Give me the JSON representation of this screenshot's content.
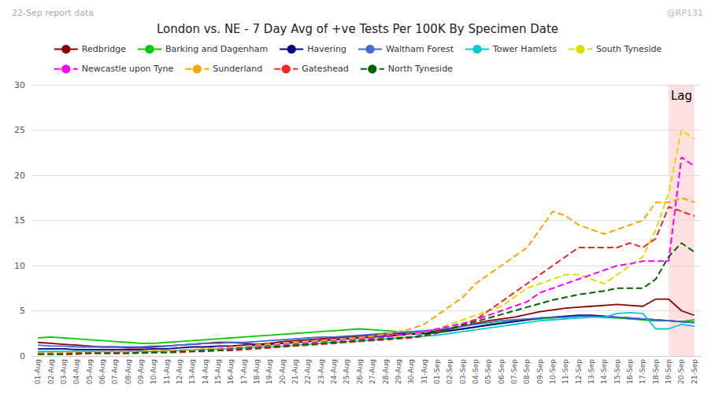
{
  "chart_data": {
    "type": "line",
    "title": "London vs. NE - 7 Day Avg of +ve Tests Per 100K By Specimen Date",
    "subtitle": "22-Sep report data",
    "annotations": [
      {
        "text": "@RP131"
      },
      {
        "text": "Lag",
        "x": [
          "19-Sep",
          "21-Sep"
        ]
      }
    ],
    "categories": [
      "01-Aug",
      "02-Aug",
      "03-Aug",
      "04-Aug",
      "05-Aug",
      "06-Aug",
      "07-Aug",
      "08-Aug",
      "09-Aug",
      "10-Aug",
      "11-Aug",
      "12-Aug",
      "13-Aug",
      "14-Aug",
      "15-Aug",
      "16-Aug",
      "17-Aug",
      "18-Aug",
      "19-Aug",
      "20-Aug",
      "21-Aug",
      "22-Aug",
      "23-Aug",
      "24-Aug",
      "25-Aug",
      "26-Aug",
      "27-Aug",
      "28-Aug",
      "29-Aug",
      "30-Aug",
      "31-Aug",
      "01-Sep",
      "02-Sep",
      "03-Sep",
      "04-Sep",
      "05-Sep",
      "06-Sep",
      "07-Sep",
      "08-Sep",
      "09-Sep",
      "10-Sep",
      "11-Sep",
      "12-Sep",
      "13-Sep",
      "14-Sep",
      "15-Sep",
      "16-Sep",
      "17-Sep",
      "18-Sep",
      "19-Sep",
      "20-Sep",
      "21-Sep"
    ],
    "series": [
      {
        "name": "Redbridge",
        "color": "#8B0000",
        "line_style": "solid",
        "values": [
          1.5,
          1.4,
          1.3,
          1.2,
          1.1,
          1.0,
          1.0,
          0.9,
          0.9,
          1.0,
          1.1,
          1.2,
          1.3,
          1.4,
          1.5,
          1.5,
          1.4,
          1.3,
          1.4,
          1.6,
          1.7,
          1.8,
          1.9,
          2.0,
          2.1,
          2.2,
          2.3,
          2.4,
          2.5,
          2.5,
          2.6,
          2.8,
          3.0,
          3.3,
          3.6,
          3.9,
          4.1,
          4.3,
          4.6,
          4.9,
          5.1,
          5.3,
          5.4,
          5.5,
          5.6,
          5.7,
          5.6,
          5.5,
          6.3,
          6.3,
          5.0,
          4.5
        ]
      },
      {
        "name": "Barking and Dagenham",
        "color": "#00CC00",
        "line_style": "solid",
        "values": [
          2.0,
          2.1,
          2.0,
          1.9,
          1.8,
          1.7,
          1.6,
          1.5,
          1.4,
          1.4,
          1.5,
          1.6,
          1.7,
          1.8,
          1.9,
          2.0,
          2.1,
          2.2,
          2.3,
          2.4,
          2.5,
          2.6,
          2.7,
          2.8,
          2.9,
          3.0,
          2.9,
          2.8,
          2.7,
          2.6,
          2.5,
          2.6,
          2.8,
          3.0,
          3.2,
          3.5,
          3.7,
          3.9,
          4.0,
          4.1,
          4.2,
          4.3,
          4.4,
          4.4,
          4.3,
          4.2,
          4.1,
          4.0,
          3.9,
          3.9,
          3.8,
          4.0
        ]
      },
      {
        "name": "Havering",
        "color": "#00008B",
        "line_style": "solid",
        "values": [
          0.8,
          0.8,
          0.8,
          0.7,
          0.7,
          0.7,
          0.7,
          0.7,
          0.7,
          0.8,
          0.8,
          0.9,
          1.0,
          1.0,
          1.1,
          1.1,
          1.2,
          1.2,
          1.3,
          1.4,
          1.5,
          1.6,
          1.7,
          1.8,
          1.9,
          2.0,
          2.1,
          2.2,
          2.3,
          2.4,
          2.5,
          2.6,
          2.8,
          3.0,
          3.2,
          3.4,
          3.6,
          3.8,
          4.0,
          4.2,
          4.3,
          4.4,
          4.5,
          4.5,
          4.4,
          4.3,
          4.2,
          4.1,
          4.0,
          3.9,
          3.8,
          3.7
        ]
      },
      {
        "name": "Waltham Forest",
        "color": "#4169E1",
        "line_style": "solid",
        "values": [
          1.2,
          1.1,
          1.1,
          1.0,
          1.0,
          1.0,
          1.0,
          1.0,
          1.0,
          1.1,
          1.1,
          1.2,
          1.3,
          1.4,
          1.4,
          1.5,
          1.5,
          1.6,
          1.7,
          1.8,
          1.9,
          2.0,
          2.1,
          2.1,
          2.2,
          2.3,
          2.4,
          2.5,
          2.6,
          2.7,
          2.8,
          2.9,
          3.1,
          3.3,
          3.5,
          3.7,
          3.9,
          4.0,
          4.1,
          4.2,
          4.3,
          4.3,
          4.4,
          4.4,
          4.3,
          4.3,
          4.2,
          4.1,
          4.0,
          3.9,
          3.8,
          3.7
        ]
      },
      {
        "name": "Tower Hamlets",
        "color": "#00CCCC",
        "line_style": "solid",
        "values": [
          0.5,
          0.5,
          0.5,
          0.5,
          0.5,
          0.5,
          0.5,
          0.5,
          0.5,
          0.5,
          0.6,
          0.6,
          0.7,
          0.7,
          0.8,
          0.8,
          0.9,
          1.0,
          1.0,
          1.1,
          1.2,
          1.3,
          1.4,
          1.5,
          1.6,
          1.7,
          1.8,
          1.9,
          2.0,
          2.1,
          2.2,
          2.3,
          2.5,
          2.7,
          2.9,
          3.1,
          3.3,
          3.5,
          3.7,
          3.9,
          4.0,
          4.1,
          4.2,
          4.3,
          4.3,
          4.7,
          4.8,
          4.7,
          3.0,
          3.0,
          3.5,
          3.3
        ]
      },
      {
        "name": "South Tyneside",
        "color": "#DDDD00",
        "line_style": "dashed",
        "values": [
          0.3,
          0.3,
          0.3,
          0.3,
          0.3,
          0.3,
          0.4,
          0.4,
          0.4,
          0.4,
          0.5,
          0.5,
          0.6,
          0.6,
          0.7,
          0.8,
          0.9,
          1.0,
          1.1,
          1.2,
          1.3,
          1.4,
          1.5,
          1.6,
          1.7,
          1.8,
          1.9,
          2.0,
          2.2,
          2.4,
          2.6,
          3.0,
          3.5,
          4.0,
          4.5,
          5.0,
          5.5,
          6.5,
          7.5,
          8.0,
          8.5,
          9.0,
          9.0,
          8.5,
          8.0,
          9.0,
          10.0,
          11.0,
          14.0,
          18.0,
          25.0,
          24.0
        ]
      },
      {
        "name": "Newcastle upon Tyne",
        "color": "#FF00FF",
        "line_style": "dashed",
        "values": [
          0.3,
          0.3,
          0.3,
          0.3,
          0.4,
          0.4,
          0.4,
          0.5,
          0.5,
          0.5,
          0.6,
          0.6,
          0.7,
          0.7,
          0.8,
          0.9,
          1.0,
          1.1,
          1.2,
          1.3,
          1.4,
          1.5,
          1.6,
          1.7,
          1.8,
          1.9,
          2.0,
          2.1,
          2.3,
          2.5,
          2.7,
          3.0,
          3.3,
          3.6,
          4.0,
          4.5,
          5.0,
          5.5,
          6.0,
          7.0,
          7.5,
          8.0,
          8.5,
          9.0,
          9.5,
          10.0,
          10.2,
          10.5,
          10.5,
          10.5,
          22.0,
          21.0
        ]
      },
      {
        "name": "Sunderland",
        "color": "#FFA500",
        "line_style": "dashed",
        "values": [
          0.3,
          0.3,
          0.4,
          0.4,
          0.4,
          0.5,
          0.5,
          0.5,
          0.5,
          0.6,
          0.6,
          0.7,
          0.7,
          0.8,
          0.9,
          1.0,
          1.1,
          1.2,
          1.3,
          1.4,
          1.5,
          1.6,
          1.7,
          1.8,
          1.9,
          2.0,
          2.2,
          2.4,
          2.7,
          3.0,
          3.5,
          4.5,
          5.5,
          6.5,
          8.0,
          9.0,
          10.0,
          11.0,
          12.0,
          14.0,
          16.0,
          15.5,
          14.5,
          14.0,
          13.5,
          14.0,
          14.5,
          15.0,
          17.0,
          17.0,
          17.5,
          17.0
        ]
      },
      {
        "name": "Gateshead",
        "color": "#FF2222",
        "line_style": "dashed",
        "values": [
          0.2,
          0.2,
          0.2,
          0.2,
          0.3,
          0.3,
          0.3,
          0.3,
          0.3,
          0.4,
          0.4,
          0.4,
          0.5,
          0.5,
          0.6,
          0.6,
          0.7,
          0.8,
          0.9,
          1.0,
          1.1,
          1.2,
          1.3,
          1.4,
          1.5,
          1.6,
          1.7,
          1.8,
          1.9,
          2.0,
          2.2,
          2.5,
          3.0,
          3.5,
          4.0,
          5.0,
          6.0,
          7.0,
          8.0,
          9.0,
          10.0,
          11.0,
          12.0,
          12.0,
          12.0,
          12.0,
          12.5,
          12.0,
          13.0,
          16.5,
          16.0,
          15.5
        ]
      },
      {
        "name": "North Tyneside",
        "color": "#006400",
        "line_style": "dashed",
        "values": [
          0.2,
          0.2,
          0.2,
          0.3,
          0.3,
          0.3,
          0.3,
          0.3,
          0.4,
          0.4,
          0.4,
          0.5,
          0.5,
          0.6,
          0.6,
          0.7,
          0.8,
          0.9,
          1.0,
          1.1,
          1.2,
          1.3,
          1.4,
          1.5,
          1.6,
          1.7,
          1.8,
          1.9,
          2.0,
          2.1,
          2.3,
          2.6,
          3.0,
          3.4,
          3.8,
          4.2,
          4.6,
          5.0,
          5.4,
          5.8,
          6.2,
          6.5,
          6.8,
          7.0,
          7.2,
          7.5,
          7.5,
          7.5,
          8.5,
          11.0,
          12.5,
          11.5
        ]
      }
    ],
    "ylim": [
      0,
      30
    ],
    "yticks": [
      0,
      5,
      10,
      15,
      20,
      25,
      30
    ],
    "grid": true,
    "legend": "top"
  }
}
